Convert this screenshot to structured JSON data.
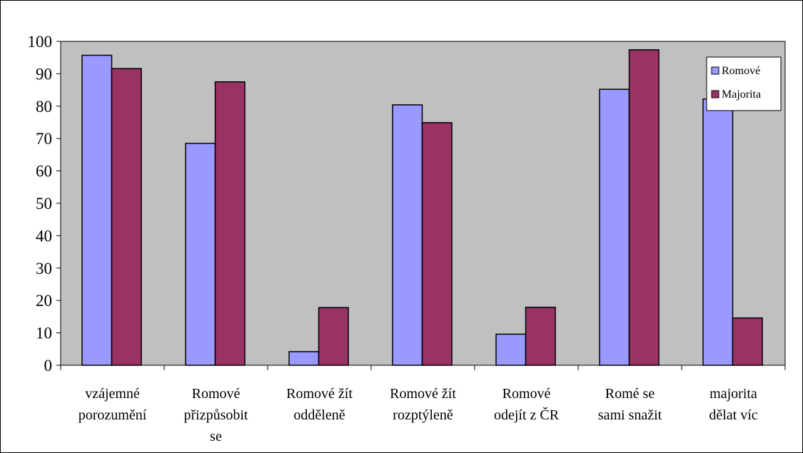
{
  "chart_data": {
    "type": "bar",
    "title": "",
    "xlabel": "",
    "ylabel": "",
    "ylim": [
      0,
      100
    ],
    "yticks": [
      "0",
      "10",
      "20",
      "30",
      "40",
      "50",
      "60",
      "70",
      "80",
      "90",
      "100"
    ],
    "ytick_values": [
      0,
      10,
      20,
      30,
      40,
      50,
      60,
      70,
      80,
      90,
      100
    ],
    "categories": [
      [
        "vzájemné",
        "porozumění"
      ],
      [
        "Romové",
        "přizpůsobit",
        "se"
      ],
      [
        "Romové žít",
        "odděleně"
      ],
      [
        "Romové žít",
        "rozptýleně"
      ],
      [
        "Romové",
        "odejít z ČR"
      ],
      [
        "Romé se",
        "sami snažit"
      ],
      [
        "majorita",
        "dělat víc"
      ]
    ],
    "series": [
      {
        "name": "Romové",
        "color": "#9999ff",
        "values": [
          95.7,
          68.5,
          4.2,
          80.4,
          9.6,
          85.2,
          82.2
        ]
      },
      {
        "name": "Majorita",
        "color": "#993366",
        "values": [
          91.6,
          87.5,
          17.8,
          74.9,
          17.9,
          97.4,
          14.6
        ]
      }
    ],
    "grid": false,
    "plot_background": "#c0c0c0",
    "legend_position": "top-right"
  }
}
